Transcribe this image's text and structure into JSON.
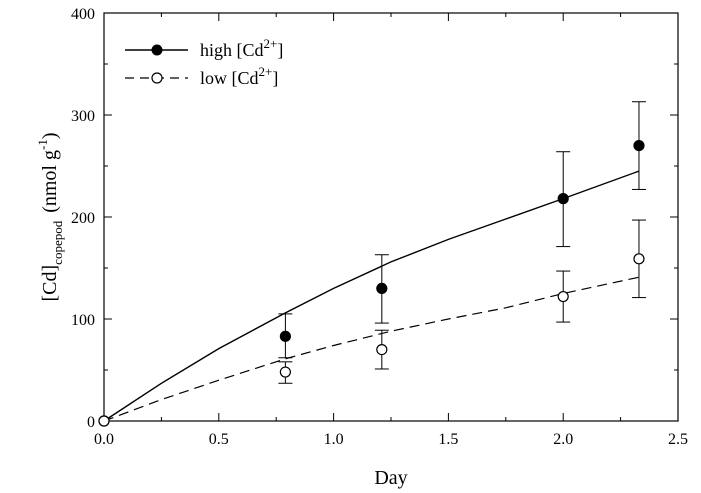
{
  "chart_data": {
    "type": "scatter",
    "title": "",
    "xlabel": "Day",
    "ylabel": {
      "main": "[Cd]",
      "subscript": "copepod",
      "unit_open": "(nmol g",
      "unit_sup": "-1",
      "unit_close": ")"
    },
    "xlim": [
      0.0,
      2.5
    ],
    "ylim": [
      0,
      400
    ],
    "x_ticks": [
      "0.0",
      "0.5",
      "1.0",
      "1.5",
      "2.0",
      "2.5"
    ],
    "y_ticks": [
      "0",
      "100",
      "200",
      "300",
      "400"
    ],
    "grid": false,
    "legend_position": "top-left",
    "series": [
      {
        "name": "high [Cd2+]",
        "legend": {
          "prefix": "high [Cd",
          "sup": "2+",
          "suffix": "]"
        },
        "marker": "filled-circle",
        "line_style": "solid",
        "color": "#000000",
        "points": [
          {
            "x": 0.0,
            "y": 0
          },
          {
            "x": 0.79,
            "y": 83,
            "err_low": 62,
            "err_high": 105
          },
          {
            "x": 1.21,
            "y": 130,
            "err_low": 96,
            "err_high": 163
          },
          {
            "x": 2.0,
            "y": 218,
            "err_low": 171,
            "err_high": 264
          },
          {
            "x": 2.33,
            "y": 270,
            "err_low": 227,
            "err_high": 313
          }
        ],
        "fit_line": [
          {
            "x": 0.0,
            "y": 0
          },
          {
            "x": 0.25,
            "y": 37
          },
          {
            "x": 0.5,
            "y": 71
          },
          {
            "x": 0.79,
            "y": 106
          },
          {
            "x": 1.0,
            "y": 130
          },
          {
            "x": 1.25,
            "y": 156
          },
          {
            "x": 1.5,
            "y": 178
          },
          {
            "x": 1.75,
            "y": 198
          },
          {
            "x": 2.0,
            "y": 218
          },
          {
            "x": 2.33,
            "y": 245
          }
        ]
      },
      {
        "name": "low [Cd2+]",
        "legend": {
          "prefix": "low [Cd",
          "sup": "2+",
          "suffix": "]"
        },
        "marker": "open-circle",
        "line_style": "dashed",
        "color": "#000000",
        "points": [
          {
            "x": 0.0,
            "y": 0
          },
          {
            "x": 0.79,
            "y": 48,
            "err_low": 37,
            "err_high": 58
          },
          {
            "x": 1.21,
            "y": 70,
            "err_low": 51,
            "err_high": 89
          },
          {
            "x": 2.0,
            "y": 122,
            "err_low": 97,
            "err_high": 147
          },
          {
            "x": 2.33,
            "y": 159,
            "err_low": 121,
            "err_high": 197
          }
        ],
        "fit_line": [
          {
            "x": 0.0,
            "y": 0
          },
          {
            "x": 0.25,
            "y": 21
          },
          {
            "x": 0.5,
            "y": 40
          },
          {
            "x": 0.79,
            "y": 61
          },
          {
            "x": 1.0,
            "y": 74
          },
          {
            "x": 1.25,
            "y": 88
          },
          {
            "x": 1.5,
            "y": 100
          },
          {
            "x": 1.75,
            "y": 111
          },
          {
            "x": 2.0,
            "y": 125
          },
          {
            "x": 2.33,
            "y": 141
          }
        ]
      }
    ]
  }
}
